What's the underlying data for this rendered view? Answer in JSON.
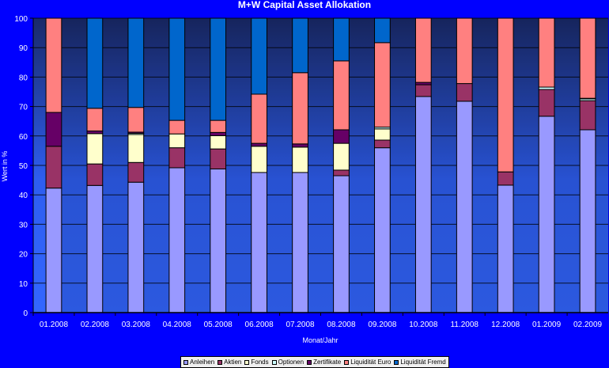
{
  "chart_data": {
    "type": "bar",
    "stacked": true,
    "title": "M+W Capital Asset Allokation",
    "xlabel": "Monat/Jahr",
    "ylabel": "Wert in %",
    "ylim": [
      0,
      100
    ],
    "yticks": [
      0,
      10,
      20,
      30,
      40,
      50,
      60,
      70,
      80,
      90,
      100
    ],
    "grid": true,
    "legend_position": "bottom",
    "categories": [
      "01.2008",
      "02.2008",
      "03.2008",
      "04.2008",
      "05.2008",
      "06.2008",
      "07.2008",
      "08.2008",
      "09.2008",
      "10.2008",
      "11.2008",
      "12.2008",
      "01.2009",
      "02.2009"
    ],
    "series": [
      {
        "name": "Anleihen",
        "color": "#9999ff",
        "values": [
          42.3,
          43.2,
          44.3,
          49.2,
          48.8,
          47.6,
          47.6,
          46.5,
          56.0,
          73.4,
          71.8,
          43.3,
          66.7,
          62.1
        ]
      },
      {
        "name": "Aktien",
        "color": "#993366",
        "values": [
          14.2,
          7.3,
          6.7,
          6.8,
          6.8,
          0,
          0,
          1.9,
          2.6,
          4.0,
          6.0,
          4.5,
          9.1,
          9.9
        ]
      },
      {
        "name": "Fonds",
        "color": "#ffffcc",
        "values": [
          0,
          10.3,
          9.5,
          4.7,
          4.5,
          8.9,
          8.6,
          9.1,
          3.8,
          0,
          0,
          0,
          0,
          0
        ]
      },
      {
        "name": "Optionen",
        "color": "#ccffff",
        "values": [
          0,
          0,
          0.4,
          0,
          0,
          0,
          0,
          0,
          0.6,
          0,
          0,
          0,
          0.8,
          0.6
        ]
      },
      {
        "name": "Zertifikate",
        "color": "#660066",
        "values": [
          11.5,
          0.9,
          0.4,
          0,
          1.1,
          1.0,
          1.1,
          4.6,
          0,
          0.8,
          0,
          0,
          0,
          0.2
        ]
      },
      {
        "name": "Liquidität Euro",
        "color": "#ff8080",
        "values": [
          32.0,
          7.7,
          8.4,
          4.6,
          4.1,
          16.7,
          24.2,
          23.4,
          28.7,
          21.8,
          22.2,
          52.2,
          23.4,
          27.2
        ]
      },
      {
        "name": "Liquidität Fremd",
        "color": "#0066cc",
        "values": [
          0,
          30.6,
          30.3,
          34.7,
          34.7,
          25.8,
          18.5,
          14.5,
          8.3,
          0,
          0,
          0,
          0,
          0
        ]
      }
    ]
  },
  "colors": {
    "background": "#0000ff",
    "plot_top": "#1a2a6a",
    "plot_bottom": "#3366ff",
    "gridline": "#000000",
    "text": "#ffffff"
  }
}
